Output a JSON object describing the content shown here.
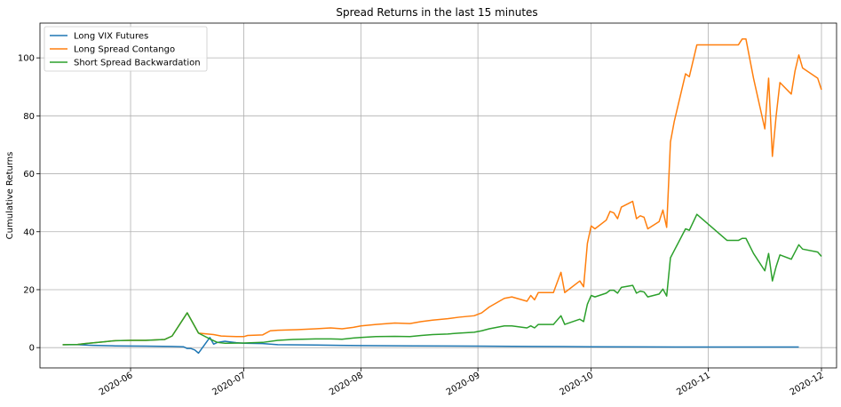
{
  "chart_data": {
    "type": "line",
    "title": "Spread Returns in the last 15 minutes",
    "xlabel": "",
    "ylabel": "Cumulative Returns",
    "xlim": [
      "2020-05-08",
      "2020-12-05"
    ],
    "ylim": [
      -7,
      112
    ],
    "grid": true,
    "legend_position": "top-left",
    "x_ticks": [
      "2020-06-01",
      "2020-07-01",
      "2020-08-01",
      "2020-09-01",
      "2020-10-01",
      "2020-11-01",
      "2020-12-01"
    ],
    "x_tick_labels": [
      "2020-06",
      "2020-07",
      "2020-08",
      "2020-09",
      "2020-10",
      "2020-11",
      "2020-12"
    ],
    "y_ticks": [
      0,
      20,
      40,
      60,
      80,
      100
    ],
    "y_tick_labels": [
      "0",
      "20",
      "40",
      "60",
      "80",
      "100"
    ],
    "series": [
      {
        "name": "Long VIX Futures",
        "color": "#1f77b4",
        "points": [
          [
            "2020-05-14",
            1.0
          ],
          [
            "2020-05-18",
            1.0
          ],
          [
            "2020-05-22",
            0.8
          ],
          [
            "2020-05-28",
            0.6
          ],
          [
            "2020-06-05",
            0.5
          ],
          [
            "2020-06-12",
            0.4
          ],
          [
            "2020-06-15",
            0.3
          ],
          [
            "2020-06-16",
            -0.3
          ],
          [
            "2020-06-17",
            -0.3
          ],
          [
            "2020-06-18",
            -0.8
          ],
          [
            "2020-06-19",
            -1.9
          ],
          [
            "2020-06-22",
            3.5
          ],
          [
            "2020-06-23",
            1.2
          ],
          [
            "2020-06-24",
            1.8
          ],
          [
            "2020-06-26",
            2.2
          ],
          [
            "2020-06-29",
            1.7
          ],
          [
            "2020-07-01",
            1.5
          ],
          [
            "2020-07-06",
            1.4
          ],
          [
            "2020-07-10",
            1.0
          ],
          [
            "2020-07-20",
            0.9
          ],
          [
            "2020-08-01",
            0.7
          ],
          [
            "2020-08-15",
            0.6
          ],
          [
            "2020-09-01",
            0.5
          ],
          [
            "2020-09-15",
            0.4
          ],
          [
            "2020-10-01",
            0.3
          ],
          [
            "2020-10-15",
            0.25
          ],
          [
            "2020-11-01",
            0.2
          ],
          [
            "2020-11-25",
            0.2
          ]
        ]
      },
      {
        "name": "Long Spread Contango",
        "color": "#ff7f0e",
        "points": [
          [
            "2020-05-14",
            1.0
          ],
          [
            "2020-05-18",
            1.1
          ],
          [
            "2020-05-20",
            1.4
          ],
          [
            "2020-05-25",
            2.0
          ],
          [
            "2020-05-28",
            2.4
          ],
          [
            "2020-06-01",
            2.5
          ],
          [
            "2020-06-05",
            2.5
          ],
          [
            "2020-06-10",
            2.8
          ],
          [
            "2020-06-12",
            4.0
          ],
          [
            "2020-06-16",
            12.0
          ],
          [
            "2020-06-19",
            5.0
          ],
          [
            "2020-06-23",
            4.5
          ],
          [
            "2020-06-25",
            4.0
          ],
          [
            "2020-06-29",
            3.8
          ],
          [
            "2020-07-01",
            3.8
          ],
          [
            "2020-07-02",
            4.2
          ],
          [
            "2020-07-06",
            4.4
          ],
          [
            "2020-07-08",
            5.8
          ],
          [
            "2020-07-10",
            6.0
          ],
          [
            "2020-07-15",
            6.2
          ],
          [
            "2020-07-20",
            6.5
          ],
          [
            "2020-07-24",
            6.8
          ],
          [
            "2020-07-27",
            6.5
          ],
          [
            "2020-07-30",
            7.0
          ],
          [
            "2020-08-01",
            7.5
          ],
          [
            "2020-08-05",
            8.0
          ],
          [
            "2020-08-10",
            8.5
          ],
          [
            "2020-08-14",
            8.3
          ],
          [
            "2020-08-17",
            9.0
          ],
          [
            "2020-08-20",
            9.5
          ],
          [
            "2020-08-24",
            10.0
          ],
          [
            "2020-08-27",
            10.5
          ],
          [
            "2020-08-31",
            11.0
          ],
          [
            "2020-09-02",
            12.0
          ],
          [
            "2020-09-04",
            14.0
          ],
          [
            "2020-09-08",
            17.0
          ],
          [
            "2020-09-10",
            17.5
          ],
          [
            "2020-09-14",
            16.0
          ],
          [
            "2020-09-15",
            18.0
          ],
          [
            "2020-09-16",
            16.5
          ],
          [
            "2020-09-17",
            19.0
          ],
          [
            "2020-09-21",
            19.0
          ],
          [
            "2020-09-23",
            26.0
          ],
          [
            "2020-09-24",
            19.0
          ],
          [
            "2020-09-28",
            23.0
          ],
          [
            "2020-09-29",
            21.0
          ],
          [
            "2020-09-30",
            36.0
          ],
          [
            "2020-10-01",
            42.0
          ],
          [
            "2020-10-02",
            41.0
          ],
          [
            "2020-10-05",
            44.0
          ],
          [
            "2020-10-06",
            47.0
          ],
          [
            "2020-10-07",
            46.5
          ],
          [
            "2020-10-08",
            44.5
          ],
          [
            "2020-10-09",
            48.5
          ],
          [
            "2020-10-12",
            50.5
          ],
          [
            "2020-10-13",
            44.5
          ],
          [
            "2020-10-14",
            45.5
          ],
          [
            "2020-10-15",
            45.0
          ],
          [
            "2020-10-16",
            41.0
          ],
          [
            "2020-10-19",
            43.5
          ],
          [
            "2020-10-20",
            47.5
          ],
          [
            "2020-10-21",
            41.5
          ],
          [
            "2020-10-22",
            71.0
          ],
          [
            "2020-10-23",
            78.0
          ],
          [
            "2020-10-26",
            94.5
          ],
          [
            "2020-10-27",
            93.5
          ],
          [
            "2020-10-29",
            104.5
          ],
          [
            "2020-11-06",
            104.5
          ],
          [
            "2020-11-09",
            104.5
          ],
          [
            "2020-11-10",
            106.5
          ],
          [
            "2020-11-11",
            106.5
          ],
          [
            "2020-11-13",
            93.0
          ],
          [
            "2020-11-16",
            75.5
          ],
          [
            "2020-11-17",
            93.0
          ],
          [
            "2020-11-18",
            66.0
          ],
          [
            "2020-11-19",
            80.0
          ],
          [
            "2020-11-20",
            91.5
          ],
          [
            "2020-11-23",
            87.5
          ],
          [
            "2020-11-24",
            95.5
          ],
          [
            "2020-11-25",
            101.0
          ],
          [
            "2020-11-26",
            96.5
          ],
          [
            "2020-11-30",
            93.0
          ],
          [
            "2020-12-01",
            89.0
          ]
        ]
      },
      {
        "name": "Short Spread Backwardation",
        "color": "#2ca02c",
        "points": [
          [
            "2020-05-14",
            1.0
          ],
          [
            "2020-05-18",
            1.1
          ],
          [
            "2020-05-20",
            1.4
          ],
          [
            "2020-05-25",
            2.0
          ],
          [
            "2020-05-28",
            2.4
          ],
          [
            "2020-06-01",
            2.5
          ],
          [
            "2020-06-05",
            2.5
          ],
          [
            "2020-06-10",
            2.8
          ],
          [
            "2020-06-12",
            4.0
          ],
          [
            "2020-06-16",
            12.0
          ],
          [
            "2020-06-19",
            5.0
          ],
          [
            "2020-06-22",
            3.0
          ],
          [
            "2020-06-24",
            1.8
          ],
          [
            "2020-06-26",
            1.5
          ],
          [
            "2020-07-01",
            1.6
          ],
          [
            "2020-07-06",
            1.8
          ],
          [
            "2020-07-10",
            2.5
          ],
          [
            "2020-07-14",
            2.8
          ],
          [
            "2020-07-20",
            3.0
          ],
          [
            "2020-07-24",
            3.0
          ],
          [
            "2020-07-27",
            2.9
          ],
          [
            "2020-07-30",
            3.3
          ],
          [
            "2020-08-01",
            3.5
          ],
          [
            "2020-08-05",
            3.8
          ],
          [
            "2020-08-10",
            3.9
          ],
          [
            "2020-08-14",
            3.8
          ],
          [
            "2020-08-17",
            4.2
          ],
          [
            "2020-08-20",
            4.5
          ],
          [
            "2020-08-24",
            4.7
          ],
          [
            "2020-08-27",
            5.0
          ],
          [
            "2020-08-31",
            5.3
          ],
          [
            "2020-09-02",
            5.8
          ],
          [
            "2020-09-04",
            6.5
          ],
          [
            "2020-09-08",
            7.5
          ],
          [
            "2020-09-10",
            7.5
          ],
          [
            "2020-09-14",
            6.8
          ],
          [
            "2020-09-15",
            7.5
          ],
          [
            "2020-09-16",
            6.8
          ],
          [
            "2020-09-17",
            8.0
          ],
          [
            "2020-09-21",
            8.0
          ],
          [
            "2020-09-23",
            11.0
          ],
          [
            "2020-09-24",
            8.0
          ],
          [
            "2020-09-28",
            9.8
          ],
          [
            "2020-09-29",
            9.0
          ],
          [
            "2020-09-30",
            15.0
          ],
          [
            "2020-10-01",
            18.0
          ],
          [
            "2020-10-02",
            17.5
          ],
          [
            "2020-10-05",
            18.8
          ],
          [
            "2020-10-06",
            19.8
          ],
          [
            "2020-10-07",
            19.8
          ],
          [
            "2020-10-08",
            18.8
          ],
          [
            "2020-10-09",
            20.8
          ],
          [
            "2020-10-12",
            21.5
          ],
          [
            "2020-10-13",
            18.8
          ],
          [
            "2020-10-14",
            19.5
          ],
          [
            "2020-10-15",
            19.2
          ],
          [
            "2020-10-16",
            17.5
          ],
          [
            "2020-10-19",
            18.5
          ],
          [
            "2020-10-20",
            20.2
          ],
          [
            "2020-10-21",
            17.8
          ],
          [
            "2020-10-22",
            31.0
          ],
          [
            "2020-10-23",
            33.5
          ],
          [
            "2020-10-26",
            41.0
          ],
          [
            "2020-10-27",
            40.5
          ],
          [
            "2020-10-29",
            46.0
          ],
          [
            "2020-11-06",
            37.0
          ],
          [
            "2020-11-09",
            37.0
          ],
          [
            "2020-11-10",
            37.7
          ],
          [
            "2020-11-11",
            37.7
          ],
          [
            "2020-11-13",
            32.5
          ],
          [
            "2020-11-16",
            26.5
          ],
          [
            "2020-11-17",
            32.5
          ],
          [
            "2020-11-18",
            23.0
          ],
          [
            "2020-11-19",
            28.0
          ],
          [
            "2020-11-20",
            32.0
          ],
          [
            "2020-11-23",
            30.5
          ],
          [
            "2020-11-24",
            33.0
          ],
          [
            "2020-11-25",
            35.5
          ],
          [
            "2020-11-26",
            34.0
          ],
          [
            "2020-11-30",
            33.0
          ],
          [
            "2020-12-01",
            31.5
          ]
        ]
      }
    ]
  }
}
